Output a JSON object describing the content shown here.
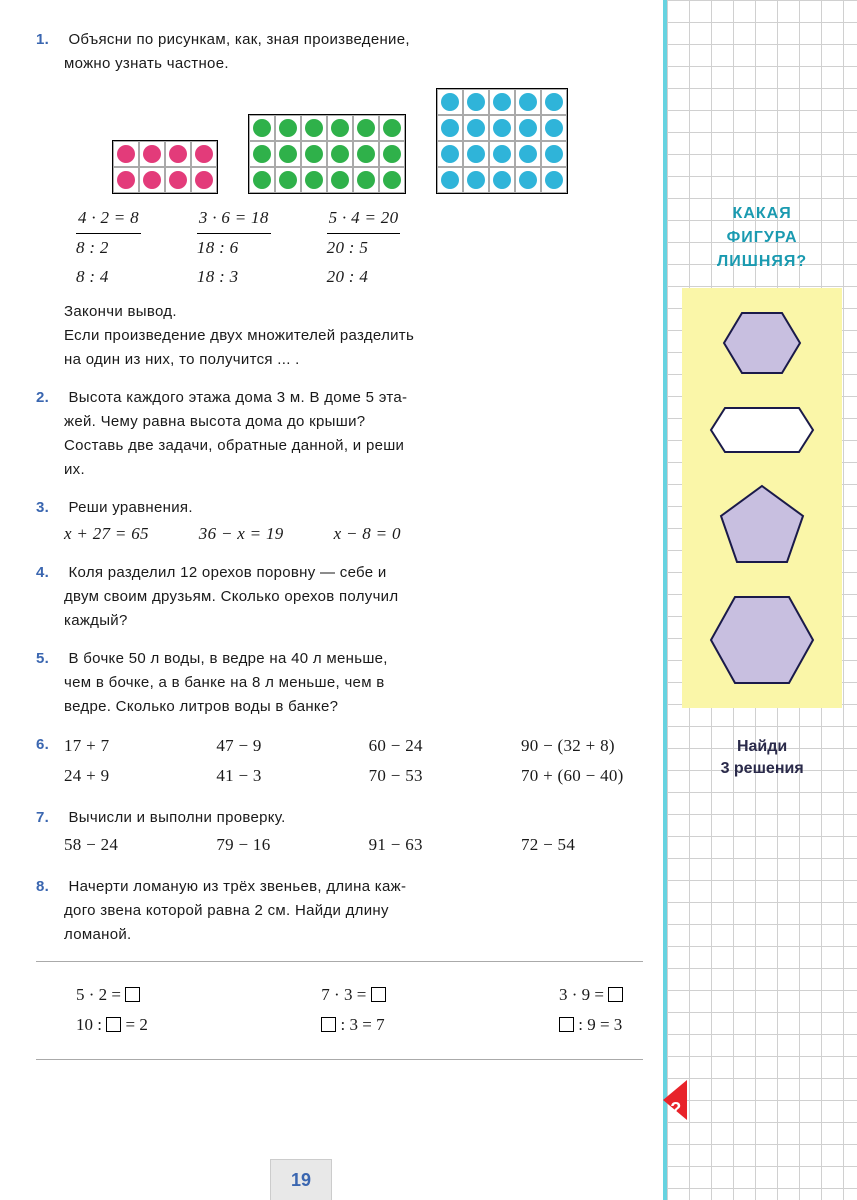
{
  "task1": {
    "num": "1.",
    "text1": "Объясни по рисункам, как, зная произведение,",
    "text2": "можно узнать частное.",
    "grid1": {
      "rows": 2,
      "cols": 4,
      "color": "#e33b7a"
    },
    "grid2": {
      "rows": 3,
      "cols": 6,
      "color": "#2fb14a"
    },
    "grid3": {
      "rows": 4,
      "cols": 5,
      "color": "#2fb4d9"
    },
    "eq1": {
      "top": "4 · 2 = 8",
      "l1": "8 : 2",
      "l2": "8 : 4"
    },
    "eq2": {
      "top": "3 · 6 = 18",
      "l1": "18 : 6",
      "l2": "18 : 3"
    },
    "eq3": {
      "top": "5 · 4 = 20",
      "l1": "20 : 5",
      "l2": "20 : 4"
    },
    "conc1": "Закончи вывод.",
    "conc2": "Если произведение двух множителей разделить",
    "conc3": "на один из них, то получится ... ."
  },
  "task2": {
    "num": "2.",
    "l1": "Высота каждого этажа дома 3 м. В доме 5 эта-",
    "l2": "жей. Чему равна высота дома до крыши?",
    "l3": "Составь две задачи, обратные данной, и реши",
    "l4": "их."
  },
  "task3": {
    "num": "3.",
    "title": "Реши уравнения.",
    "e1": "x + 27 = 65",
    "e2": "36 − x = 19",
    "e3": "x − 8 = 0"
  },
  "task4": {
    "num": "4.",
    "l1": "Коля разделил 12 орехов поровну — себе и",
    "l2": "двум своим друзьям. Сколько орехов получил",
    "l3": "каждый?"
  },
  "task5": {
    "num": "5.",
    "l1": "В бочке 50 л воды, в ведре на 40 л меньше,",
    "l2": "чем в бочке, а в банке на 8 л меньше, чем в",
    "l3": "ведре. Сколько литров воды в банке?"
  },
  "task6": {
    "num": "6.",
    "c1": [
      "17 + 7",
      "24 + 9"
    ],
    "c2": [
      "47 − 9",
      "41 − 3"
    ],
    "c3": [
      "60 − 24",
      "70 − 53"
    ],
    "c4": [
      "90 − (32 + 8)",
      "70 + (60 − 40)"
    ]
  },
  "task7": {
    "num": "7.",
    "title": "Вычисли и выполни проверку.",
    "e": [
      "58 − 24",
      "79 − 16",
      "91 − 63",
      "72 − 54"
    ]
  },
  "task8": {
    "num": "8.",
    "l1": "Начерти ломаную из трёх звеньев, длина каж-",
    "l2": "дого звена которой равна 2 см. Найди длину",
    "l3": "ломаной."
  },
  "footer": {
    "c1a": "5 · 2 = ",
    "c1b": "10 : ",
    "c1c": " = 2",
    "c2a": "7 · 3 = ",
    "c2b": " : 3 = 7",
    "c3a": "3 · 9 = ",
    "c3b": " : 9 = 3"
  },
  "pagenum": "19",
  "sidebar": {
    "title1": "КАКАЯ",
    "title2": "ФИГУРА",
    "title3": "ЛИШНЯЯ?",
    "footer1": "Найди",
    "footer2": "3  решения",
    "shape_fill": "#c8bfe0",
    "shape_stroke": "#1a1a4a"
  }
}
